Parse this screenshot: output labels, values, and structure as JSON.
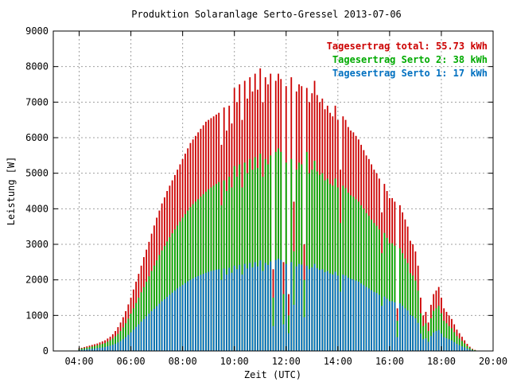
{
  "chart_data": {
    "type": "bar",
    "title": "Produktion Solaranlage Serto-Gressel 2013-07-06",
    "xlabel": "Zeit (UTC)",
    "ylabel": "Leistung [W]",
    "xlim": [
      3,
      20
    ],
    "ylim": [
      0,
      9000
    ],
    "grid": true,
    "legend_position": "top-right",
    "x_ticks": [
      {
        "value": 4,
        "label": "04:00"
      },
      {
        "value": 6,
        "label": "06:00"
      },
      {
        "value": 8,
        "label": "08:00"
      },
      {
        "value": 10,
        "label": "10:00"
      },
      {
        "value": 12,
        "label": "12:00"
      },
      {
        "value": 14,
        "label": "14:00"
      },
      {
        "value": 16,
        "label": "16:00"
      },
      {
        "value": 18,
        "label": "18:00"
      },
      {
        "value": 20,
        "label": "20:00"
      }
    ],
    "y_ticks": [
      0,
      1000,
      2000,
      3000,
      4000,
      5000,
      6000,
      7000,
      8000,
      9000
    ],
    "colors": {
      "total": "#cc0000",
      "serto2": "#00aa00",
      "serto1": "#0070c0"
    },
    "legend": [
      {
        "text": "Tagesertrag total: 55.73 kWh",
        "color": "#cc0000"
      },
      {
        "text": "Tagesertrag Serto 2: 38 kWh",
        "color": "#00aa00"
      },
      {
        "text": "Tagesertrag Serto 1: 17 kWh",
        "color": "#0070c0"
      }
    ],
    "x": [
      4.0,
      4.1,
      4.2,
      4.3,
      4.4,
      4.5,
      4.6,
      4.7,
      4.8,
      4.9,
      5.0,
      5.1,
      5.2,
      5.3,
      5.4,
      5.5,
      5.6,
      5.7,
      5.8,
      5.9,
      6.0,
      6.1,
      6.2,
      6.3,
      6.4,
      6.5,
      6.6,
      6.7,
      6.8,
      6.9,
      7.0,
      7.1,
      7.2,
      7.3,
      7.4,
      7.5,
      7.6,
      7.7,
      7.8,
      7.9,
      8.0,
      8.1,
      8.2,
      8.3,
      8.4,
      8.5,
      8.6,
      8.7,
      8.8,
      8.9,
      9.0,
      9.1,
      9.2,
      9.3,
      9.4,
      9.5,
      9.6,
      9.7,
      9.8,
      9.9,
      10.0,
      10.1,
      10.2,
      10.3,
      10.4,
      10.5,
      10.6,
      10.7,
      10.8,
      10.9,
      11.0,
      11.1,
      11.2,
      11.3,
      11.4,
      11.5,
      11.6,
      11.7,
      11.8,
      11.9,
      12.0,
      12.1,
      12.2,
      12.3,
      12.4,
      12.5,
      12.6,
      12.7,
      12.8,
      12.9,
      13.0,
      13.1,
      13.2,
      13.3,
      13.4,
      13.5,
      13.6,
      13.7,
      13.8,
      13.9,
      14.0,
      14.1,
      14.2,
      14.3,
      14.4,
      14.5,
      14.6,
      14.7,
      14.8,
      14.9,
      15.0,
      15.1,
      15.2,
      15.3,
      15.4,
      15.5,
      15.6,
      15.7,
      15.8,
      15.9,
      16.0,
      16.1,
      16.2,
      16.3,
      16.4,
      16.5,
      16.6,
      16.7,
      16.8,
      16.9,
      17.0,
      17.1,
      17.2,
      17.3,
      17.4,
      17.5,
      17.6,
      17.7,
      17.8,
      17.9,
      18.0,
      18.1,
      18.2,
      18.3,
      18.4,
      18.5,
      18.6,
      18.7,
      18.8,
      18.9,
      19.0,
      19.1,
      19.2,
      19.3
    ],
    "series": [
      {
        "name": "Tagesertrag total",
        "key": "total",
        "values": [
          80,
          90,
          110,
          130,
          150,
          170,
          190,
          210,
          240,
          270,
          300,
          350,
          400,
          470,
          560,
          670,
          800,
          950,
          1120,
          1310,
          1500,
          1730,
          1950,
          2170,
          2400,
          2640,
          2850,
          3070,
          3300,
          3530,
          3750,
          3950,
          4150,
          4320,
          4500,
          4650,
          4800,
          4950,
          5100,
          5250,
          5400,
          5550,
          5700,
          5850,
          5950,
          6050,
          6150,
          6250,
          6350,
          6450,
          6500,
          6550,
          6600,
          6650,
          6700,
          5800,
          6850,
          6200,
          6900,
          6400,
          7400,
          7000,
          7500,
          6500,
          7600,
          7100,
          7700,
          7300,
          7800,
          7350,
          7950,
          7000,
          7700,
          7500,
          7800,
          2300,
          7600,
          7800,
          7650,
          2500,
          7450,
          1600,
          7700,
          4200,
          7300,
          7500,
          7450,
          3000,
          7400,
          7000,
          7250,
          7600,
          7200,
          7000,
          7100,
          6800,
          6900,
          6700,
          6600,
          6900,
          6500,
          5100,
          6600,
          6500,
          6300,
          6200,
          6150,
          6050,
          5950,
          5800,
          5650,
          5500,
          5400,
          5250,
          5100,
          5000,
          4850,
          3900,
          4700,
          4500,
          4300,
          4300,
          4200,
          1200,
          4100,
          3900,
          3700,
          3500,
          3100,
          3000,
          2800,
          2400,
          1500,
          1000,
          1100,
          800,
          1300,
          1600,
          1700,
          1800,
          1500,
          1200,
          1100,
          1000,
          900,
          750,
          600,
          500,
          400,
          300,
          200,
          120,
          60,
          30
        ]
      },
      {
        "name": "Tagesertrag Serto 2",
        "key": "serto2",
        "values": [
          60,
          70,
          80,
          95,
          110,
          125,
          140,
          160,
          180,
          200,
          220,
          260,
          300,
          350,
          410,
          480,
          560,
          660,
          780,
          910,
          1050,
          1200,
          1350,
          1500,
          1650,
          1800,
          1950,
          2100,
          2250,
          2400,
          2550,
          2700,
          2830,
          2950,
          3080,
          3200,
          3310,
          3420,
          3530,
          3640,
          3750,
          3850,
          3950,
          4050,
          4130,
          4200,
          4270,
          4340,
          4410,
          4480,
          4550,
          4600,
          4650,
          4700,
          4750,
          4100,
          4800,
          4500,
          4900,
          4600,
          5200,
          4900,
          5250,
          4600,
          5300,
          5000,
          5400,
          5100,
          5450,
          5150,
          5550,
          4900,
          5400,
          5250,
          5500,
          1500,
          5600,
          5700,
          5600,
          1600,
          5300,
          1000,
          5400,
          2800,
          5100,
          5300,
          5250,
          2000,
          5600,
          5000,
          5100,
          5350,
          5050,
          4950,
          5000,
          4800,
          4850,
          4700,
          4650,
          4850,
          4600,
          3600,
          4650,
          4580,
          4450,
          4380,
          4340,
          4270,
          4200,
          4100,
          4000,
          3880,
          3800,
          3700,
          3600,
          3520,
          3420,
          2750,
          3320,
          3180,
          3030,
          3030,
          2960,
          850,
          2890,
          2750,
          2600,
          2470,
          2190,
          2120,
          1980,
          1700,
          1060,
          700,
          780,
          560,
          920,
          1130,
          1200,
          1270,
          1060,
          850,
          780,
          700,
          640,
          530,
          420,
          350,
          280,
          210,
          140,
          85,
          42,
          21
        ]
      },
      {
        "name": "Tagesertrag Serto 1",
        "key": "serto1",
        "values": [
          30,
          35,
          40,
          50,
          55,
          60,
          70,
          80,
          90,
          100,
          110,
          130,
          150,
          175,
          205,
          240,
          280,
          330,
          390,
          455,
          525,
          600,
          675,
          750,
          825,
          900,
          975,
          1050,
          1120,
          1190,
          1260,
          1330,
          1400,
          1460,
          1520,
          1580,
          1640,
          1700,
          1760,
          1810,
          1860,
          1910,
          1960,
          2000,
          2040,
          2080,
          2110,
          2140,
          2170,
          2200,
          2230,
          2250,
          2270,
          2290,
          2300,
          2000,
          2320,
          2150,
          2340,
          2200,
          2400,
          2300,
          2420,
          2150,
          2450,
          2320,
          2480,
          2350,
          2500,
          2380,
          2550,
          2250,
          2480,
          2420,
          2520,
          700,
          2560,
          2600,
          2560,
          750,
          2450,
          500,
          2500,
          1300,
          2380,
          2450,
          2430,
          950,
          2400,
          2300,
          2350,
          2450,
          2330,
          2280,
          2300,
          2220,
          2250,
          2180,
          2150,
          2230,
          2120,
          1670,
          2150,
          2120,
          2060,
          2030,
          2010,
          1980,
          1950,
          1900,
          1850,
          1800,
          1760,
          1710,
          1660,
          1630,
          1580,
          1270,
          1530,
          1470,
          1400,
          1400,
          1370,
          390,
          1340,
          1270,
          1200,
          1140,
          1010,
          980,
          920,
          790,
          490,
          330,
          360,
          260,
          420,
          520,
          560,
          590,
          490,
          390,
          360,
          330,
          300,
          250,
          200,
          165,
          130,
          100,
          65,
          40,
          20,
          10
        ]
      }
    ]
  }
}
